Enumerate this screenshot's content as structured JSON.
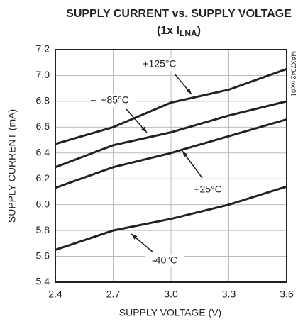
{
  "chart_data": {
    "type": "line",
    "title": "SUPPLY CURRENT vs. SUPPLY VOLTAGE",
    "subtitle": [
      "(1x I",
      "LNA",
      ")"
    ],
    "x_label": "SUPPLY VOLTAGE (V)",
    "y_label": "SUPPLY CURRENT (mA)",
    "watermark": "MAX7042 toc01",
    "x": [
      2.4,
      2.7,
      3.0,
      3.3,
      3.6
    ],
    "series": [
      {
        "name": "+125°C",
        "color": "#222222",
        "values": [
          6.47,
          6.6,
          6.79,
          6.89,
          7.05
        ]
      },
      {
        "name": "+85°C",
        "color": "#222222",
        "values": [
          6.29,
          6.46,
          6.56,
          6.69,
          6.8
        ]
      },
      {
        "name": "+25°C",
        "color": "#222222",
        "values": [
          6.13,
          6.29,
          6.4,
          6.53,
          6.66
        ]
      },
      {
        "name": "-40°C",
        "color": "#222222",
        "values": [
          5.65,
          5.8,
          5.89,
          6.0,
          6.14
        ]
      }
    ],
    "xlim": [
      2.4,
      3.6
    ],
    "xticks": [
      2.4,
      2.7,
      {
        "value": 3,
        "label": "3.0"
      },
      3.3,
      3.6
    ],
    "ylim": [
      5.4,
      7.2
    ],
    "yticks": [
      5.4,
      5.6,
      5.8,
      {
        "value": 6,
        "label": "6.0"
      },
      6.2,
      6.4,
      6.6,
      6.8,
      {
        "value": 7,
        "label": "7.0"
      },
      7.2
    ],
    "grid": true
  }
}
